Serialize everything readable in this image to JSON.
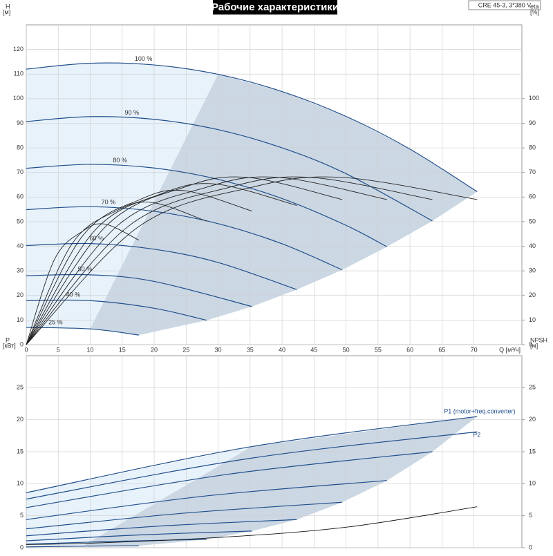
{
  "chart_data": [
    {
      "type": "line",
      "title": "Рабочие характеристики",
      "annotation": "CRE 45-3, 3*380 V",
      "xlabel": "Q [м³/ч]",
      "ylabel": "H",
      "yunit": "[м]",
      "y2label": "eta",
      "y2unit": "[%]",
      "xlim": [
        0,
        77.5
      ],
      "xticks": [
        0,
        5,
        10,
        15,
        20,
        25,
        30,
        35,
        40,
        45,
        50,
        55,
        60,
        65,
        70
      ],
      "ylim": [
        0,
        130
      ],
      "yticks": [
        0,
        10,
        20,
        30,
        40,
        50,
        60,
        70,
        80,
        90,
        100,
        110,
        120
      ],
      "y2lim": [
        0,
        130
      ],
      "y2ticks": [
        0,
        10,
        20,
        30,
        40,
        50,
        60,
        70,
        80,
        90,
        100
      ],
      "grid": true,
      "series": [
        {
          "name": "100 %",
          "color": "#1f4e8c",
          "x": [
            0,
            10,
            20,
            30,
            40,
            50,
            60,
            70.5
          ],
          "values": [
            112,
            114.4,
            113.7,
            109.9,
            102.9,
            92.8,
            79.5,
            62.2
          ]
        },
        {
          "name": "90 %",
          "color": "#1f4e8c",
          "x": [
            0,
            10,
            20,
            30,
            40,
            50,
            63.5
          ],
          "values": [
            90.7,
            92.7,
            91.6,
            87.4,
            80.0,
            69.5,
            50.3
          ]
        },
        {
          "name": "80 %",
          "color": "#1f4e8c",
          "x": [
            0,
            10,
            20,
            30,
            40,
            50,
            56.4
          ],
          "values": [
            71.7,
            73.3,
            71.8,
            67.2,
            59.4,
            48.5,
            39.8
          ]
        },
        {
          "name": "70 %",
          "color": "#1f4e8c",
          "x": [
            0,
            10,
            20,
            30,
            40,
            49.4
          ],
          "values": [
            54.9,
            56.1,
            54.2,
            49.2,
            41.0,
            30.4
          ]
        },
        {
          "name": "60 %",
          "color": "#1f4e8c",
          "x": [
            0,
            10,
            20,
            30,
            42.3
          ],
          "values": [
            40.3,
            41.1,
            38.8,
            33.4,
            22.4
          ]
        },
        {
          "name": "50 %",
          "color": "#1f4e8c",
          "x": [
            0,
            10,
            20,
            35.3
          ],
          "values": [
            28,
            28.4,
            25.7,
            15.5
          ]
        },
        {
          "name": "40 %",
          "color": "#1f4e8c",
          "x": [
            0,
            10,
            20,
            28.2
          ],
          "values": [
            17.9,
            17.9,
            14.8,
            9.9
          ]
        },
        {
          "name": "25 %",
          "color": "#1f4e8c",
          "x": [
            0,
            10,
            17.6
          ],
          "values": [
            7,
            6.4,
            3.9
          ]
        },
        {
          "axis": "y2",
          "color": "#222222",
          "x": [
            0,
            17.6,
            35.3,
            49.4,
            70.5
          ],
          "values": [
            0,
            48,
            64,
            68,
            59
          ]
        },
        {
          "axis": "y2",
          "color": "#222222",
          "x": [
            0,
            15.9,
            31.8,
            44.5,
            63.5
          ],
          "values": [
            0,
            48,
            64,
            68,
            59
          ]
        },
        {
          "axis": "y2",
          "color": "#222222",
          "x": [
            0,
            14.1,
            28.2,
            39.5,
            56.4
          ],
          "values": [
            0,
            48,
            64,
            68,
            59
          ]
        },
        {
          "axis": "y2",
          "color": "#222222",
          "x": [
            0,
            12.4,
            24.7,
            34.6,
            49.4
          ],
          "values": [
            0,
            48,
            64,
            68,
            59
          ]
        },
        {
          "axis": "y2",
          "color": "#222222",
          "x": [
            0,
            10.6,
            21.2,
            29.6,
            42.3
          ],
          "values": [
            0,
            46.1,
            61.4,
            65.3,
            56.6
          ]
        },
        {
          "axis": "y2",
          "color": "#222222",
          "x": [
            0,
            8.8,
            17.7,
            24.7,
            35.3
          ],
          "values": [
            0,
            44.2,
            58.9,
            62.6,
            54.3
          ]
        },
        {
          "axis": "y2",
          "color": "#222222",
          "x": [
            0,
            7.1,
            14.1,
            19.7,
            28.2
          ],
          "values": [
            0,
            40.8,
            54.4,
            57.8,
            50.2
          ]
        },
        {
          "axis": "y2",
          "color": "#222222",
          "x": [
            0,
            4.4,
            8.8,
            12.3,
            17.6
          ],
          "values": [
            0,
            34.6,
            46.1,
            49,
            42.5
          ]
        }
      ]
    },
    {
      "type": "line",
      "ylabel": "P",
      "yunit": "[кВт]",
      "y2label": "NPSH",
      "y2unit": "[м]",
      "xlim": [
        0,
        77.5
      ],
      "ylim": [
        0,
        30
      ],
      "yticks": [
        0,
        5,
        10,
        15,
        20,
        25
      ],
      "y2lim": [
        0,
        30
      ],
      "y2ticks": [
        0,
        5,
        10,
        15,
        20,
        25
      ],
      "grid": true,
      "series": [
        {
          "name": "P1 (motor+freq.converter)",
          "color": "#1f4e8c",
          "x": [
            0,
            35.25,
            70.5
          ],
          "values": [
            8.6,
            15.8,
            20.5
          ]
        },
        {
          "color": "#1f4e8c",
          "x": [
            0,
            31.75,
            63.5
          ],
          "values": [
            6.27,
            11.5,
            15.0
          ]
        },
        {
          "color": "#1f4e8c",
          "x": [
            0,
            28.2,
            56.4
          ],
          "values": [
            4.4,
            8.1,
            10.5
          ]
        },
        {
          "color": "#1f4e8c",
          "x": [
            0,
            24.7,
            49.4
          ],
          "values": [
            2.95,
            5.4,
            7.1
          ]
        },
        {
          "color": "#1f4e8c",
          "x": [
            0,
            21.15,
            42.3
          ],
          "values": [
            1.86,
            3.4,
            4.4
          ]
        },
        {
          "color": "#1f4e8c",
          "x": [
            0,
            17.65,
            35.3
          ],
          "values": [
            1.08,
            2.0,
            2.6
          ]
        },
        {
          "color": "#1f4e8c",
          "x": [
            0,
            14.1,
            28.2
          ],
          "values": [
            0.55,
            1.0,
            1.3
          ]
        },
        {
          "color": "#1f4e8c",
          "x": [
            0,
            8.8,
            17.6
          ],
          "values": [
            0.13,
            0.24,
            0.3
          ]
        },
        {
          "name": "P2",
          "color": "#1f4e8c",
          "x": [
            0,
            35.25,
            70.5
          ],
          "values": [
            7.6,
            14,
            18.1
          ]
        },
        {
          "axis": "y2",
          "color": "#111111",
          "x": [
            0,
            10,
            30,
            50,
            70.5
          ],
          "values": [
            0.5,
            0.7,
            1.6,
            3.2,
            6.4
          ]
        }
      ]
    }
  ]
}
